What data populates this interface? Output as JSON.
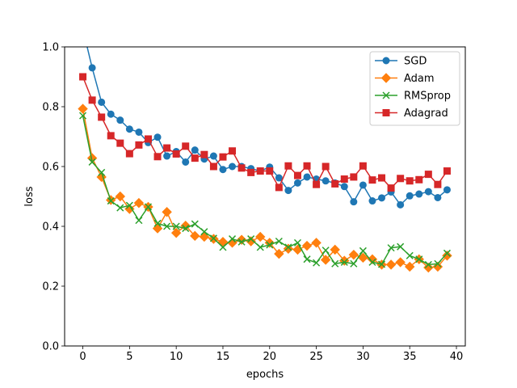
{
  "chart_data": {
    "type": "line",
    "title": "",
    "xlabel": "epochs",
    "ylabel": "loss",
    "xlim": [
      -1.95,
      40.95
    ],
    "ylim": [
      0.0,
      1.0
    ],
    "xticks": [
      0,
      5,
      10,
      15,
      20,
      25,
      30,
      35,
      40
    ],
    "yticks": [
      0.0,
      0.2,
      0.4,
      0.6,
      0.8,
      1.0
    ],
    "xtick_labels": [
      "0",
      "5",
      "10",
      "15",
      "20",
      "25",
      "30",
      "35",
      "40"
    ],
    "ytick_labels": [
      "0.0",
      "0.2",
      "0.4",
      "0.6",
      "0.8",
      "1.0"
    ],
    "grid": false,
    "legend_position": "top-right",
    "x": [
      0,
      1,
      2,
      3,
      4,
      5,
      6,
      7,
      8,
      9,
      10,
      11,
      12,
      13,
      14,
      15,
      16,
      17,
      18,
      19,
      20,
      21,
      22,
      23,
      24,
      25,
      26,
      27,
      28,
      29,
      30,
      31,
      32,
      33,
      34,
      35,
      36,
      37,
      38,
      39
    ],
    "series": [
      {
        "name": "SGD",
        "color": "#1f77b4",
        "marker": "circle",
        "values": [
          1.06,
          0.93,
          0.815,
          0.775,
          0.755,
          0.725,
          0.715,
          0.68,
          0.698,
          0.635,
          0.65,
          0.615,
          0.655,
          0.625,
          0.635,
          0.59,
          0.6,
          0.6,
          0.593,
          0.585,
          0.598,
          0.562,
          0.52,
          0.545,
          0.565,
          0.558,
          0.552,
          0.545,
          0.533,
          0.482,
          0.538,
          0.485,
          0.495,
          0.515,
          0.472,
          0.502,
          0.508,
          0.516,
          0.496,
          0.522
        ]
      },
      {
        "name": "Adam",
        "color": "#ff7f0e",
        "marker": "diamond",
        "values": [
          0.793,
          0.628,
          0.565,
          0.488,
          0.5,
          0.458,
          0.478,
          0.465,
          0.393,
          0.448,
          0.378,
          0.402,
          0.368,
          0.365,
          0.358,
          0.348,
          0.345,
          0.355,
          0.35,
          0.365,
          0.345,
          0.308,
          0.325,
          0.322,
          0.335,
          0.345,
          0.288,
          0.322,
          0.285,
          0.305,
          0.295,
          0.29,
          0.272,
          0.272,
          0.28,
          0.265,
          0.29,
          0.262,
          0.265,
          0.302
        ]
      },
      {
        "name": "RMSprop",
        "color": "#2ca02c",
        "marker": "x",
        "values": [
          0.77,
          0.615,
          0.58,
          0.485,
          0.462,
          0.47,
          0.42,
          0.465,
          0.41,
          0.4,
          0.4,
          0.393,
          0.408,
          0.382,
          0.36,
          0.33,
          0.358,
          0.348,
          0.358,
          0.33,
          0.338,
          0.35,
          0.33,
          0.345,
          0.29,
          0.278,
          0.32,
          0.275,
          0.28,
          0.275,
          0.318,
          0.28,
          0.273,
          0.328,
          0.332,
          0.302,
          0.29,
          0.272,
          0.275,
          0.31
        ]
      },
      {
        "name": "Adagrad",
        "color": "#d62728",
        "marker": "square",
        "values": [
          0.9,
          0.822,
          0.765,
          0.703,
          0.678,
          0.643,
          0.672,
          0.692,
          0.633,
          0.662,
          0.642,
          0.668,
          0.628,
          0.64,
          0.6,
          0.632,
          0.652,
          0.595,
          0.58,
          0.585,
          0.585,
          0.53,
          0.602,
          0.57,
          0.602,
          0.54,
          0.6,
          0.542,
          0.558,
          0.565,
          0.602,
          0.555,
          0.562,
          0.528,
          0.56,
          0.552,
          0.556,
          0.574,
          0.54,
          0.585
        ]
      }
    ]
  }
}
